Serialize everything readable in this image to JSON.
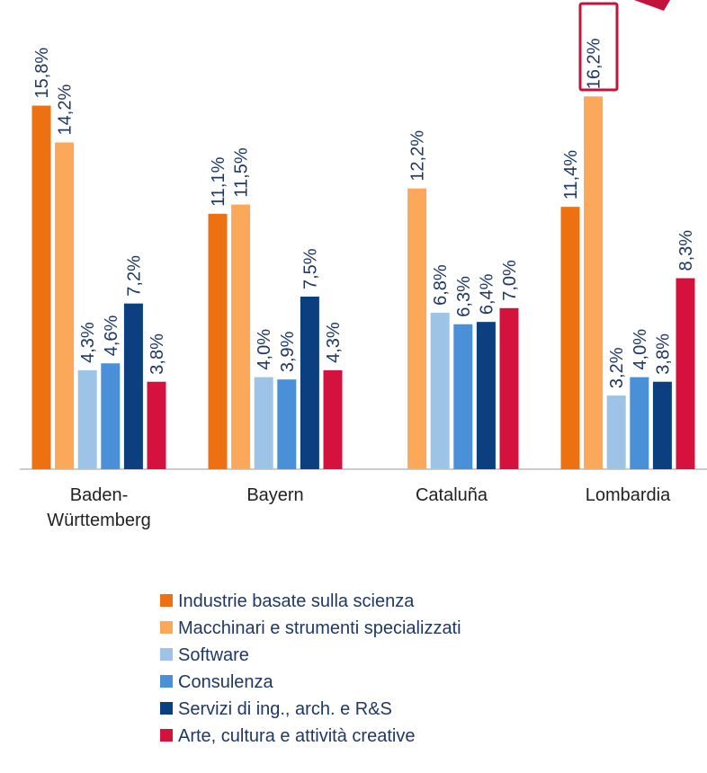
{
  "chart_data": {
    "type": "bar",
    "categories": [
      "Baden-\nWürttemberg",
      "Bayern",
      "Cataluña",
      "Lombardia"
    ],
    "ylim": [
      0,
      20
    ],
    "series": [
      {
        "name": "Industrie basate sulla scienza",
        "color": "#ed7011",
        "values": [
          15.8,
          11.1,
          null,
          11.4
        ],
        "value_labels": [
          "15,8%",
          "11,1%",
          null,
          "11,4%"
        ]
      },
      {
        "name": "Macchinari e strumenti specializzati",
        "color": "#fba85a",
        "values": [
          14.2,
          11.5,
          12.2,
          16.2
        ],
        "value_labels": [
          "14,2%",
          "11,5%",
          "12,2%",
          "16,2%"
        ]
      },
      {
        "name": "Software",
        "color": "#9dc3e6",
        "values": [
          4.3,
          4.0,
          6.8,
          3.2
        ],
        "value_labels": [
          "4,3%",
          "4,0%",
          "6,8%",
          "3,2%"
        ]
      },
      {
        "name": "Consulenza",
        "color": "#4a90d9",
        "values": [
          4.6,
          3.9,
          6.3,
          4.0
        ],
        "value_labels": [
          "4,6%",
          "3,9%",
          "6,3%",
          "4,0%"
        ]
      },
      {
        "name": "Servizi di ing., arch. e R&S",
        "color": "#0b3f80",
        "values": [
          7.2,
          7.5,
          6.4,
          3.8
        ],
        "value_labels": [
          "7,2%",
          "7,5%",
          "6,4%",
          "3,8%"
        ]
      },
      {
        "name": "Arte, cultura e attività creative",
        "color": "#d5123d",
        "values": [
          3.8,
          4.3,
          7.0,
          8.3
        ],
        "value_labels": [
          "3,8%",
          "4,3%",
          "7,0%",
          "8,3%"
        ]
      }
    ]
  }
}
